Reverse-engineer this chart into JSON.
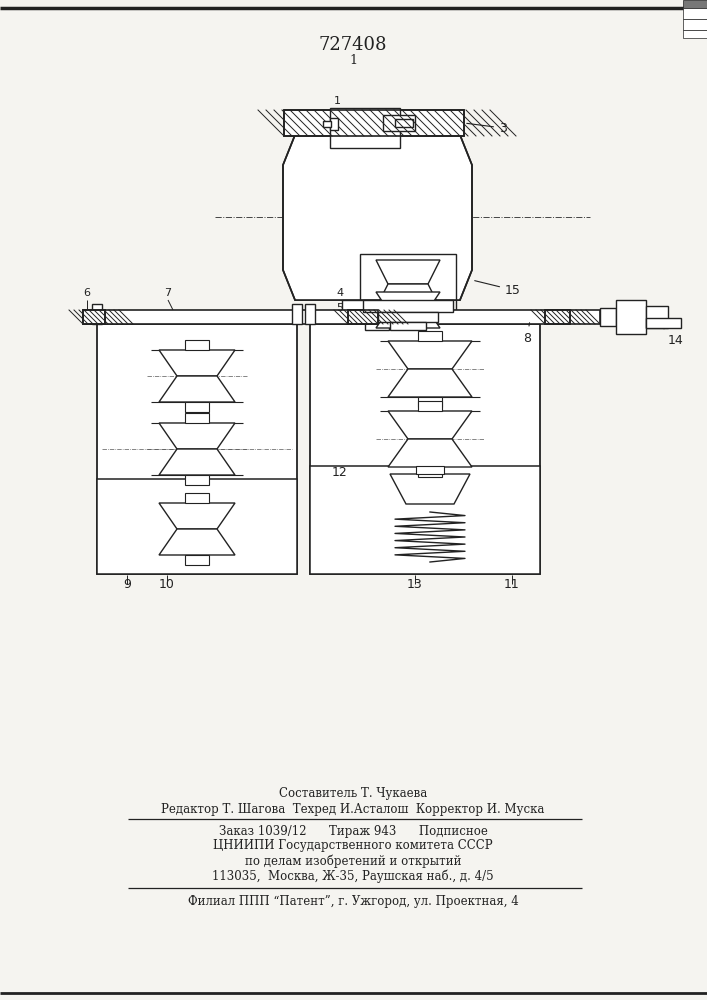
{
  "patent_number": "727408",
  "bg_color": "#f5f4f0",
  "line_color": "#222222",
  "footer_lines": [
    "Составитель Т. Чукаева",
    "Редактор Т. Шагова  Техред И.Асталош  Корректор И. Муска",
    "Заказ 1039/12      Тираж 943      Подписное",
    "ЦНИИПИ Государственного комитета СССР",
    "по делам изобретений и открытий",
    "113035,  Москва, Ж-35, Раушская наб., д. 4/5",
    "Филиал ППП “Патент”, г. Ужгород, ул. Проектная, 4"
  ]
}
